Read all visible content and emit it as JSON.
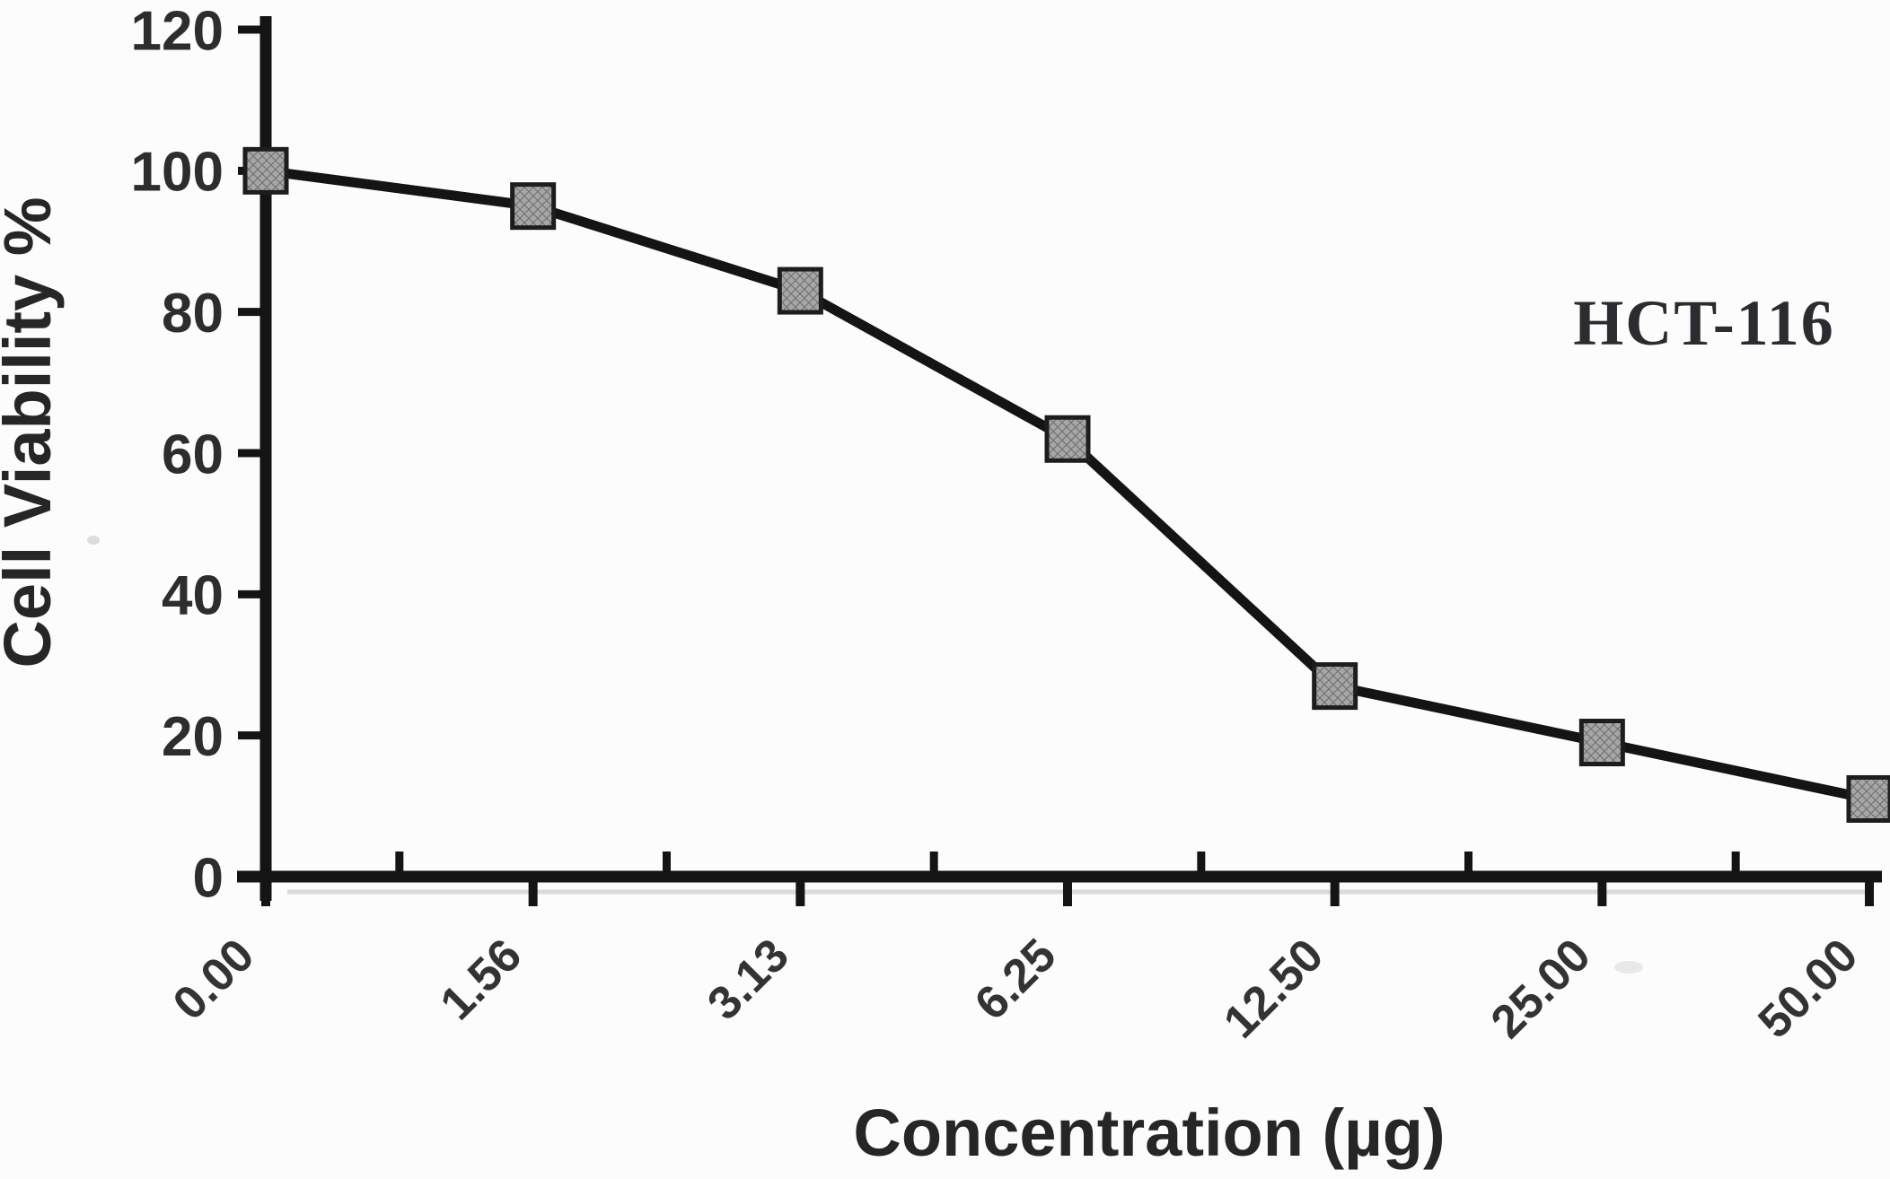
{
  "figure": {
    "background": "#fcfcfc"
  },
  "chart_data": {
    "type": "line",
    "title": "",
    "annotation": "HCT-116",
    "xlabel": "Concentration (µg)",
    "ylabel": "Cell Viability %",
    "categories": [
      "0.00",
      "1.56",
      "3.13",
      "6.25",
      "12.50",
      "25.00",
      "50.00"
    ],
    "series": [
      {
        "name": "HCT-116",
        "marker": "hatched-square",
        "values": [
          100,
          95,
          83,
          62,
          27,
          19,
          11
        ]
      }
    ],
    "ylim": [
      0,
      120
    ],
    "yticks": [
      0,
      20,
      40,
      60,
      80,
      100,
      120
    ],
    "grid": false,
    "legend": "none",
    "colors": {
      "line": "#141414",
      "axis": "#141414",
      "marker_fill": "#a6a6a6",
      "marker_hatch": "#6c6c6c",
      "marker_border": "#1d1d1d",
      "tick_text": "#2d2d2d",
      "title_text": "#262626",
      "annotation_text": "#2c2c30"
    }
  }
}
